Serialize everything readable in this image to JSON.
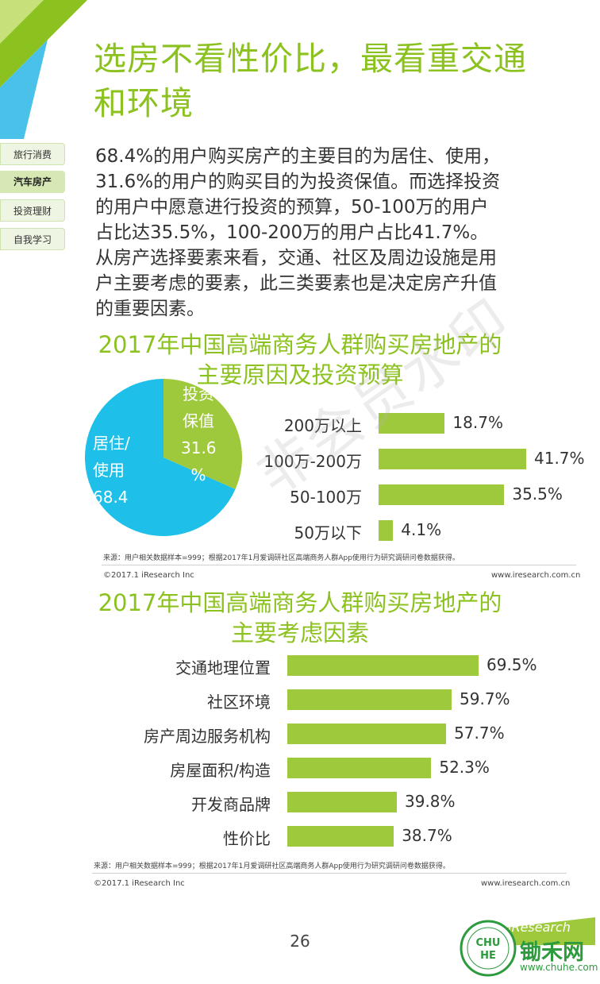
{
  "title": {
    "line1": "选房不看性价比，最看重交通",
    "line2": "和环境"
  },
  "nav": [
    {
      "label": "旅行消费",
      "active": false
    },
    {
      "label": "汽车房产",
      "active": true
    },
    {
      "label": "投资理财",
      "active": false
    },
    {
      "label": "自我学习",
      "active": false
    }
  ],
  "body": [
    "68.4%的用户购买房产的主要目的为居住、使用，",
    "31.6%的用户的购买目的为投资保值。而选择投资",
    "的用户中愿意进行投资的预算，50-100万的用户",
    "占比达35.5%，100-200万的用户占比41.7%。",
    "从房产选择要素来看，交通、社区及周边设施是用",
    "户主要考虑的要素，此三类要素也是决定房产升值",
    "的重要因素。"
  ],
  "watermark": "非会员水印",
  "chart1": {
    "title1": "2017年中国高端商务人群购买房地产的",
    "title2": "主要原因及投资预算"
  },
  "chart2": {
    "title1": "2017年中国高端商务人群购买房地产的",
    "title2": "主要考虑因素"
  },
  "chart_data": [
    {
      "type": "pie",
      "slices": [
        {
          "label_lines": [
            "居住/",
            "使用",
            "68.4"
          ],
          "value": 68.4
        },
        {
          "label_lines": [
            "投资",
            "保值",
            "31.6",
            "%"
          ],
          "value": 31.6
        }
      ],
      "colors": {
        "居住/使用": "#1ec0ea",
        "投资保值": "#9fc93c"
      }
    },
    {
      "type": "bar",
      "orientation": "horizontal",
      "categories": [
        "200万以上",
        "100万-200万",
        "50-100万",
        "50万以下"
      ],
      "values": [
        18.7,
        41.7,
        35.5,
        4.1
      ],
      "value_labels": [
        "18.7%",
        "41.7%",
        "35.5%",
        "4.1%"
      ],
      "color": "#9fc93c"
    },
    {
      "type": "bar",
      "orientation": "horizontal",
      "categories": [
        "交通地理位置",
        "社区环境",
        "房产周边服务机构",
        "房屋面积/构造",
        "开发商品牌",
        "性价比"
      ],
      "values": [
        69.5,
        59.7,
        57.7,
        52.3,
        39.8,
        38.7
      ],
      "value_labels": [
        "69.5%",
        "59.7%",
        "57.7%",
        "52.3%",
        "39.8%",
        "38.7%"
      ],
      "color": "#9fc93c"
    }
  ],
  "source1": "来源：用户相关数据样本=999；根据2017年1月爱调研社区高端商务人群App使用行为研究调研问卷数据获得。",
  "copyright1": "©2017.1 iResearch Inc",
  "site1": "www.iresearch.com.cn",
  "source2": "来源：用户相关数据样本=999；根据2017年1月爱调研社区高端商务人群App使用行为研究调研问卷数据获得。",
  "copyright2": "©2017.1 iResearch Inc",
  "site2": "www.iresearch.com.cn",
  "page_number": "26",
  "brand": {
    "iresearch": "iResearch",
    "chuhe_cn": "锄禾网",
    "chuhe_url": "www.chuhe.com",
    "seal_text": "CHU HE"
  }
}
